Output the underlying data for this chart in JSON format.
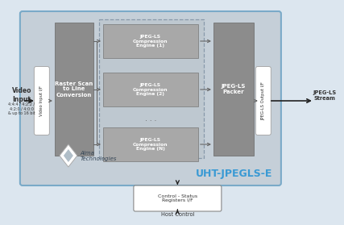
{
  "bg_color": "#dce6ef",
  "main_bg": "#c5cfd8",
  "main_border": "#7aaac8",
  "dark_block": "#8c8c8c",
  "engine_block": "#a8a8a8",
  "white_block": "#ffffff",
  "dashed_bg": "#bec8d0",
  "title_color": "#3a9ad4",
  "text_dark": "#333333",
  "text_white": "#ffffff",
  "text_gray": "#555555",
  "arrow_dark": "#222222",
  "arrow_gray": "#666666",
  "title": "UHT-JPEGLS-E",
  "video_input_label": "Video\nInput",
  "video_format": "4:4:4 / 4:2:2 /\n4:2:0 / 4:0:0\n& up to 16 bit",
  "vi_block_label": "Video Input I/F",
  "raster_label": "Raster Scan\nto Line\nConversion",
  "engine1_label": "JPEG-LS\nCompression\nEngine (1)",
  "engine2_label": "JPEG-LS\nCompression\nEngine (2)",
  "engineN_label": "JPEG-LS\nCompression\nEngine (N)",
  "packer_label": "JPEG-LS\nPacker",
  "output_if_label": "JPEG-LS Output I/F",
  "jpeg_ls_stream": "JPEG-LS\nStream",
  "control_label": "Control - Status\nRegisters I/F",
  "host_label": "Host Control",
  "alma_text": "Alma\nTechnologies"
}
